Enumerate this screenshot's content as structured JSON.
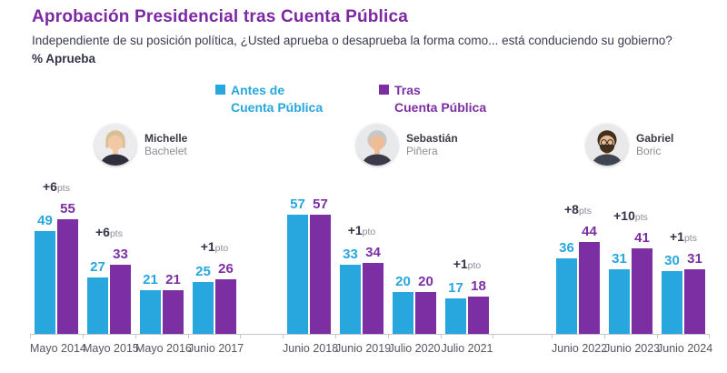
{
  "header": {
    "title": "Aprobación Presidencial tras Cuenta Pública",
    "subtitle": "Independiente de su posición política, ¿Usted aprueba o desaprueba la forma como... está conduciendo su gobierno?",
    "metric_label": "% Aprueba"
  },
  "legend": {
    "antes": {
      "line1": "Antes de",
      "line2": "Cuenta Pública",
      "color": "#27a7de"
    },
    "tras": {
      "line1": "Tras",
      "line2": "Cuenta Pública",
      "color": "#7b2fa3"
    }
  },
  "chart_data": {
    "type": "bar",
    "title": "Aprobación Presidencial tras Cuenta Pública",
    "ylabel": "% Aprueba",
    "ylim": [
      0,
      60
    ],
    "grid": false,
    "legend_position": "top",
    "series_names": [
      "Antes de Cuenta Pública",
      "Tras Cuenta Pública"
    ],
    "colors": {
      "antes": "#27a7de",
      "tras": "#7b2fa3",
      "title": "#7b28a2",
      "annotation_value": "#33334a",
      "annotation_suffix": "#8c8c98",
      "axis": "#c6c6cc"
    },
    "groups": [
      {
        "president_first": "Michelle",
        "president_last": "Bachelet",
        "avatar": "bachelet",
        "points": [
          {
            "category": "Mayo 2014",
            "antes": 49,
            "tras": 55,
            "delta": "+6",
            "delta_suffix": "pts"
          },
          {
            "category": "Mayo 2015",
            "antes": 27,
            "tras": 33,
            "delta": "+6",
            "delta_suffix": "pts"
          },
          {
            "category": "Mayo 2016",
            "antes": 21,
            "tras": 21,
            "delta": null,
            "delta_suffix": null
          },
          {
            "category": "Junio 2017",
            "antes": 25,
            "tras": 26,
            "delta": "+1",
            "delta_suffix": "pto"
          }
        ]
      },
      {
        "president_first": "Sebastián",
        "president_last": "Piñera",
        "avatar": "pinera",
        "points": [
          {
            "category": "Junio 2018",
            "antes": 57,
            "tras": 57,
            "delta": null,
            "delta_suffix": null
          },
          {
            "category": "Junio 2019",
            "antes": 33,
            "tras": 34,
            "delta": "+1",
            "delta_suffix": "pto"
          },
          {
            "category": "Julio 2020",
            "antes": 20,
            "tras": 20,
            "delta": null,
            "delta_suffix": null
          },
          {
            "category": "Julio 2021",
            "antes": 17,
            "tras": 18,
            "delta": "+1",
            "delta_suffix": "pto"
          }
        ]
      },
      {
        "president_first": "Gabriel",
        "president_last": "Boric",
        "avatar": "boric",
        "points": [
          {
            "category": "Junio 2022",
            "antes": 36,
            "tras": 44,
            "delta": "+8",
            "delta_suffix": "pts"
          },
          {
            "category": "Junio 2023",
            "antes": 31,
            "tras": 41,
            "delta": "+10",
            "delta_suffix": "pts"
          },
          {
            "category": "Junio 2024",
            "antes": 30,
            "tras": 31,
            "delta": "+1",
            "delta_suffix": "pts"
          }
        ]
      }
    ]
  }
}
